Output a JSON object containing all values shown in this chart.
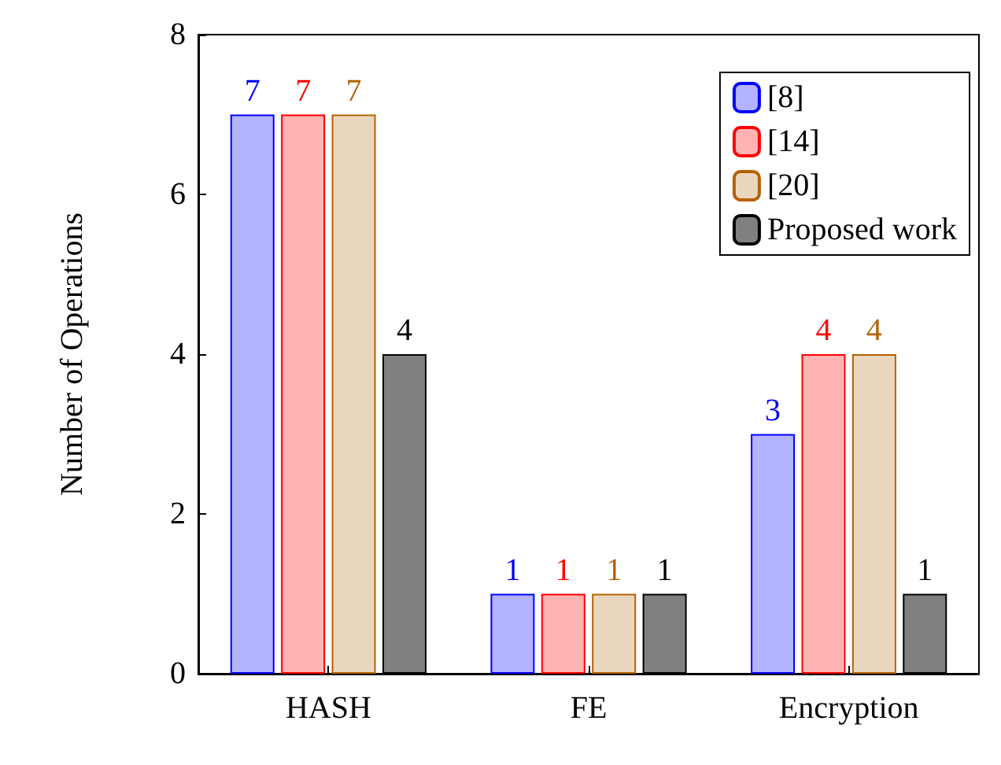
{
  "chart_data": {
    "type": "bar",
    "ylabel": "Number of Operations",
    "categories": [
      "HASH",
      "FE",
      "Encryption"
    ],
    "series": [
      {
        "name": "[8]",
        "color": "#b3b3ff",
        "values": [
          7,
          1,
          3
        ]
      },
      {
        "name": "[14]",
        "color": "#ffb3b3",
        "values": [
          7,
          1,
          4
        ]
      },
      {
        "name": "[20]",
        "color": "#ebd7bf",
        "values": [
          7,
          1,
          4
        ]
      },
      {
        "name": "Proposed work",
        "color": "#808080",
        "values": [
          4,
          1,
          1
        ]
      }
    ],
    "ylim": [
      0,
      8
    ],
    "yticks": [
      0,
      2,
      4,
      6,
      8
    ],
    "grid": false,
    "legend": "top right",
    "data_labels": true
  }
}
